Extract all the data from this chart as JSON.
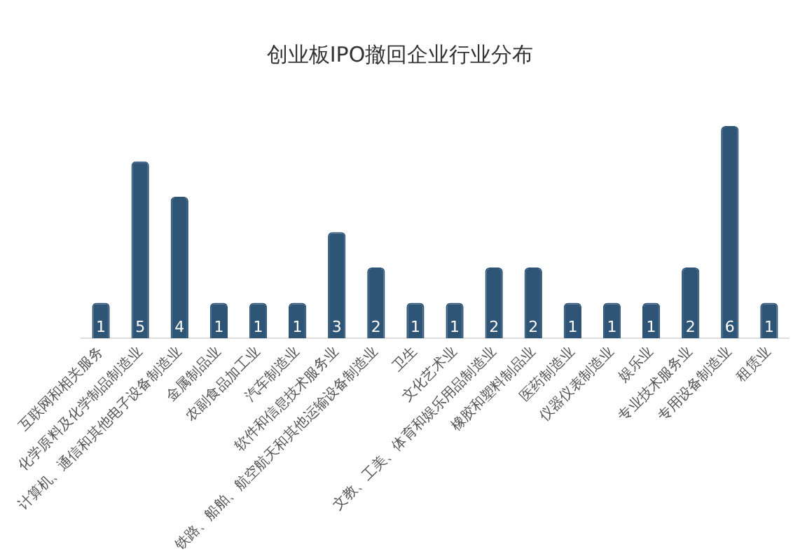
{
  "chart_data": {
    "type": "bar",
    "title": "创业板IPO撤回企业行业分布",
    "categories": [
      "互联网和相关服务",
      "化学原料及化学制品制造业",
      "计算机、通信和其他电子设备制造业",
      "金属制品业",
      "农副食品加工业",
      "汽车制造业",
      "软件和信息技术服务业",
      "铁路、船舶、航空航天和其他运输设备制造业",
      "卫生",
      "文化艺术业",
      "文教、工美、体育和娱乐用品制造业",
      "橡胶和塑料制品业",
      "医药制造业",
      "仪器仪表制造业",
      "娱乐业",
      "专业技术服务业",
      "专用设备制造业",
      "租赁业"
    ],
    "values": [
      1,
      5,
      4,
      1,
      1,
      1,
      3,
      2,
      1,
      1,
      2,
      2,
      1,
      1,
      1,
      2,
      6,
      1
    ],
    "color": "#2f5576",
    "data_labels": true,
    "grid": false,
    "legend": false
  }
}
